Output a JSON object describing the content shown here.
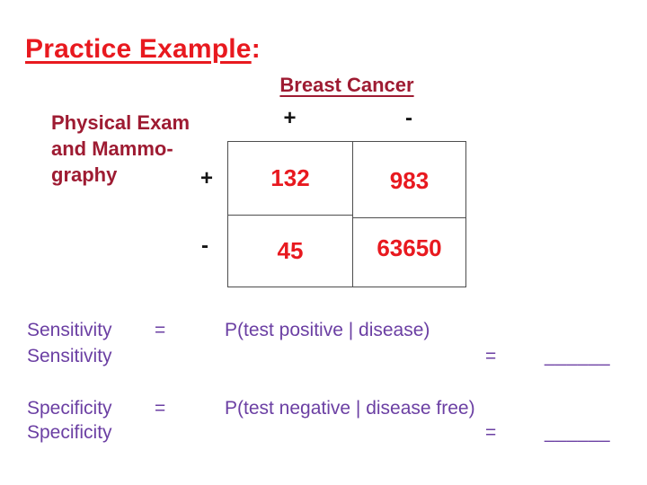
{
  "title": {
    "text": "Practice Example",
    "colon": ":"
  },
  "contingency": {
    "header": "Breast Cancer",
    "row_group_label": "Physical Exam\nand Mammo-\ngraphy",
    "col_headers": [
      "+",
      "-"
    ],
    "row_headers": [
      "+",
      "-"
    ],
    "cells": [
      [
        "132",
        "983"
      ],
      [
        "45",
        "63650"
      ]
    ]
  },
  "formulas": [
    {
      "label": "Sensitivity",
      "eq": "=",
      "definition": "P(test positive | disease)"
    },
    {
      "label": "Sensitivity",
      "eq": "=",
      "blank": "______"
    },
    {
      "label": "Specificity",
      "eq": "=",
      "definition": "P(test negative | disease free)"
    },
    {
      "label": "Specificity",
      "eq": "=",
      "blank": "______"
    }
  ],
  "colors": {
    "title_red": "#e8191f",
    "value_red": "#e8191f",
    "maroon": "#9e1b32",
    "purple": "#6b3fa3",
    "black": "#141414",
    "table_border": "#4d4d4d",
    "background": "#ffffff"
  }
}
